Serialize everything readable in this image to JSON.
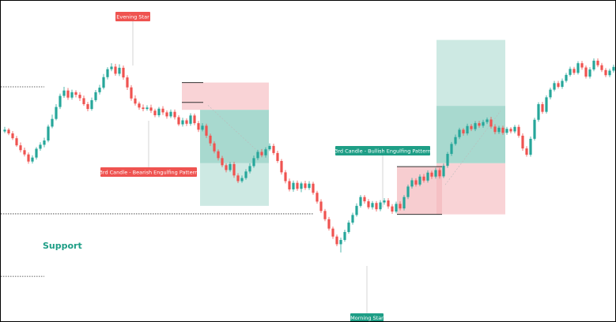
{
  "chart_data": {
    "type": "candlestick",
    "title": "",
    "xlabel": "",
    "ylabel": "",
    "grid": false,
    "legend": "none",
    "colors": {
      "up": "#26a69a",
      "down": "#ef5350",
      "tag_bear": "#ef5350",
      "tag_bull": "#1e9e86",
      "profit_zone": "#cde9e3",
      "profit_zone_dark": "#a8d9cf",
      "loss_zone": "#f9d3d6",
      "support_text": "#1e9e86"
    },
    "ylim": [
      0,
      100
    ],
    "candles": [
      [
        56.8,
        57.4,
        58.4,
        56.2
      ],
      [
        57.4,
        56.1,
        58.0,
        55.5
      ],
      [
        56.1,
        54.4,
        56.9,
        53.8
      ],
      [
        54.4,
        51.9,
        55.2,
        51.4
      ],
      [
        51.9,
        50.2,
        52.9,
        49.4
      ],
      [
        50.2,
        48.7,
        51.1,
        48.0
      ],
      [
        48.7,
        46.2,
        49.4,
        45.4
      ],
      [
        46.2,
        47.6,
        48.4,
        45.5
      ],
      [
        47.6,
        50.7,
        51.3,
        46.9
      ],
      [
        50.7,
        52.1,
        53.0,
        50.0
      ],
      [
        52.1,
        53.6,
        54.6,
        51.2
      ],
      [
        53.6,
        58.5,
        59.2,
        53.0
      ],
      [
        58.5,
        61.2,
        62.7,
        57.9
      ],
      [
        61.2,
        65.4,
        66.4,
        60.7
      ],
      [
        65.4,
        69.3,
        70.1,
        64.7
      ],
      [
        69.3,
        71.2,
        72.5,
        68.6
      ],
      [
        71.2,
        68.7,
        72.1,
        67.9
      ],
      [
        68.7,
        70.6,
        71.5,
        68.0
      ],
      [
        70.6,
        69.7,
        71.3,
        68.8
      ],
      [
        69.7,
        68.5,
        70.6,
        67.5
      ],
      [
        68.5,
        66.4,
        69.4,
        65.8
      ],
      [
        66.4,
        64.7,
        67.2,
        63.9
      ],
      [
        64.7,
        67.8,
        68.7,
        64.1
      ],
      [
        67.8,
        70.6,
        71.4,
        67.2
      ],
      [
        70.6,
        72.2,
        73.2,
        69.8
      ],
      [
        72.2,
        75.9,
        77.0,
        71.6
      ],
      [
        75.9,
        78.7,
        79.4,
        75.1
      ],
      [
        78.7,
        79.6,
        80.8,
        78.0
      ],
      [
        79.6,
        77.1,
        80.6,
        76.4
      ],
      [
        77.1,
        79.2,
        80.4,
        76.3
      ],
      [
        79.2,
        75.8,
        80.0,
        75.0
      ],
      [
        75.8,
        72.3,
        76.6,
        71.4
      ],
      [
        72.3,
        68.4,
        73.1,
        67.6
      ],
      [
        68.4,
        66.6,
        69.5,
        65.9
      ],
      [
        66.6,
        65.2,
        67.3,
        64.4
      ],
      [
        65.2,
        64.7,
        66.3,
        63.9
      ],
      [
        64.7,
        65.2,
        66.0,
        64.1
      ],
      [
        65.2,
        64.1,
        66.2,
        63.3
      ],
      [
        64.1,
        62.5,
        64.8,
        61.8
      ],
      [
        62.5,
        64.8,
        65.4,
        61.8
      ],
      [
        64.8,
        63.5,
        65.7,
        62.6
      ],
      [
        63.5,
        62.1,
        64.2,
        61.3
      ],
      [
        62.1,
        63.7,
        64.5,
        61.5
      ],
      [
        63.7,
        61.8,
        64.5,
        61.0
      ],
      [
        61.8,
        59.3,
        62.5,
        58.7
      ],
      [
        59.3,
        60.7,
        61.6,
        58.5
      ],
      [
        60.7,
        59.5,
        61.4,
        58.7
      ],
      [
        59.5,
        62.4,
        63.2,
        58.8
      ],
      [
        62.4,
        59.7,
        63.1,
        59.0
      ],
      [
        59.7,
        57.4,
        60.5,
        56.6
      ],
      [
        57.4,
        58.8,
        59.7,
        56.8
      ],
      [
        58.8,
        55.3,
        59.5,
        54.5
      ],
      [
        55.3,
        52.6,
        56.0,
        51.7
      ],
      [
        52.6,
        49.8,
        53.3,
        49.1
      ],
      [
        49.8,
        47.4,
        50.5,
        46.6
      ],
      [
        47.4,
        44.9,
        48.2,
        44.2
      ],
      [
        44.9,
        43.2,
        45.6,
        42.4
      ],
      [
        43.2,
        45.3,
        46.0,
        42.6
      ],
      [
        45.3,
        41.3,
        46.1,
        40.5
      ],
      [
        41.3,
        39.3,
        42.1,
        38.6
      ],
      [
        39.3,
        40.4,
        41.3,
        38.7
      ],
      [
        40.4,
        42.7,
        43.5,
        39.8
      ],
      [
        42.7,
        44.6,
        45.6,
        42.0
      ],
      [
        44.6,
        47.4,
        48.3,
        44.0
      ],
      [
        47.4,
        49.6,
        50.3,
        46.7
      ],
      [
        49.6,
        48.4,
        50.6,
        47.7
      ],
      [
        48.4,
        50.5,
        51.2,
        47.6
      ],
      [
        50.5,
        51.7,
        52.6,
        49.9
      ],
      [
        51.7,
        49.2,
        52.5,
        48.5
      ],
      [
        49.2,
        46.4,
        50.0,
        45.7
      ],
      [
        46.4,
        42.4,
        47.1,
        41.6
      ],
      [
        42.4,
        39.3,
        43.2,
        38.5
      ],
      [
        39.3,
        36.4,
        40.2,
        35.7
      ],
      [
        36.4,
        38.7,
        39.5,
        35.6
      ],
      [
        38.7,
        36.6,
        39.5,
        35.9
      ],
      [
        36.6,
        38.5,
        39.1,
        35.4
      ],
      [
        38.5,
        36.9,
        39.4,
        36.2
      ],
      [
        36.9,
        38.4,
        39.3,
        36.2
      ],
      [
        38.4,
        35.2,
        39.1,
        34.5
      ],
      [
        35.2,
        32.1,
        35.9,
        31.4
      ],
      [
        32.1,
        28.8,
        32.9,
        28.1
      ],
      [
        28.8,
        25.9,
        29.5,
        25.2
      ],
      [
        25.9,
        22.6,
        26.7,
        21.9
      ],
      [
        22.6,
        19.8,
        23.3,
        19.0
      ],
      [
        19.8,
        17.1,
        20.5,
        16.4
      ],
      [
        17.1,
        18.6,
        19.4,
        14.2
      ],
      [
        18.6,
        21.4,
        22.2,
        18.0
      ],
      [
        21.4,
        24.7,
        25.5,
        20.8
      ],
      [
        24.7,
        27.4,
        28.2,
        24.0
      ],
      [
        27.4,
        30.6,
        31.5,
        26.8
      ],
      [
        30.6,
        33.7,
        34.4,
        30.0
      ],
      [
        33.7,
        32.2,
        34.4,
        31.4
      ],
      [
        32.2,
        30.1,
        33.0,
        29.4
      ],
      [
        30.1,
        31.6,
        32.3,
        29.3
      ],
      [
        31.6,
        29.4,
        32.3,
        28.6
      ],
      [
        29.4,
        31.8,
        32.6,
        28.7
      ],
      [
        31.8,
        32.5,
        33.3,
        31.0
      ],
      [
        32.5,
        30.4,
        33.3,
        29.6
      ],
      [
        30.4,
        28.6,
        31.2,
        27.8
      ],
      [
        28.6,
        31.3,
        32.1,
        28.0
      ],
      [
        31.3,
        29.7,
        32.2,
        29.0
      ],
      [
        29.7,
        33.7,
        34.4,
        29.0
      ],
      [
        33.7,
        37.4,
        38.1,
        33.0
      ],
      [
        37.4,
        39.6,
        40.4,
        36.7
      ],
      [
        39.6,
        38.1,
        40.3,
        37.4
      ],
      [
        38.1,
        40.9,
        41.7,
        37.5
      ],
      [
        40.9,
        39.5,
        41.8,
        38.8
      ],
      [
        39.5,
        42.3,
        43.1,
        38.8
      ],
      [
        42.3,
        40.9,
        43.0,
        40.1
      ],
      [
        40.9,
        43.2,
        44.0,
        40.2
      ],
      [
        43.2,
        41.0,
        44.0,
        40.2
      ],
      [
        41.0,
        44.7,
        45.5,
        40.4
      ],
      [
        44.7,
        48.9,
        49.6,
        44.0
      ],
      [
        48.9,
        52.4,
        53.1,
        48.2
      ],
      [
        52.4,
        54.8,
        55.7,
        51.8
      ],
      [
        54.8,
        57.4,
        58.1,
        54.1
      ],
      [
        57.4,
        56.1,
        58.0,
        55.3
      ],
      [
        56.1,
        58.7,
        59.5,
        55.4
      ],
      [
        58.7,
        57.6,
        59.4,
        56.9
      ],
      [
        57.6,
        59.7,
        60.4,
        56.9
      ],
      [
        59.7,
        58.8,
        60.5,
        58.1
      ],
      [
        58.8,
        60.1,
        60.9,
        58.1
      ],
      [
        60.1,
        61.0,
        61.7,
        59.4
      ],
      [
        61.0,
        58.5,
        61.9,
        57.8
      ],
      [
        58.5,
        56.6,
        59.3,
        55.8
      ],
      [
        56.6,
        58.1,
        58.8,
        55.9
      ],
      [
        58.1,
        56.3,
        58.8,
        55.6
      ],
      [
        56.3,
        57.7,
        58.4,
        55.6
      ],
      [
        57.7,
        56.8,
        58.3,
        56.1
      ],
      [
        56.8,
        58.4,
        59.1,
        56.1
      ],
      [
        58.4,
        55.3,
        59.2,
        54.6
      ],
      [
        55.3,
        50.8,
        56.1,
        50.0
      ],
      [
        50.8,
        48.6,
        51.6,
        47.9
      ],
      [
        48.6,
        54.2,
        55.0,
        47.9
      ],
      [
        54.2,
        60.9,
        61.6,
        53.6
      ],
      [
        60.9,
        66.4,
        67.1,
        60.2
      ],
      [
        66.4,
        63.7,
        67.2,
        63.0
      ],
      [
        63.7,
        68.8,
        69.5,
        63.1
      ],
      [
        68.8,
        71.5,
        72.2,
        68.1
      ],
      [
        71.5,
        73.8,
        74.6,
        70.9
      ],
      [
        73.8,
        72.5,
        74.6,
        71.9
      ],
      [
        72.5,
        74.6,
        75.4,
        71.8
      ],
      [
        74.6,
        76.7,
        77.4,
        74.0
      ],
      [
        76.7,
        78.8,
        79.6,
        76.1
      ],
      [
        78.8,
        77.4,
        79.5,
        76.7
      ],
      [
        77.4,
        80.8,
        81.5,
        76.8
      ],
      [
        80.8,
        79.3,
        81.6,
        78.5
      ],
      [
        79.3,
        76.1,
        80.0,
        75.4
      ],
      [
        76.1,
        78.6,
        79.4,
        75.4
      ],
      [
        78.6,
        81.7,
        82.5,
        78.0
      ],
      [
        81.7,
        80.1,
        82.5,
        79.4
      ],
      [
        80.1,
        78.4,
        80.9,
        77.7
      ],
      [
        78.4,
        76.6,
        79.1,
        75.9
      ],
      [
        76.6,
        78.2,
        78.9,
        75.9
      ],
      [
        78.2,
        79.5,
        80.3,
        77.5
      ]
    ],
    "annotations": {
      "evening_star": "Evening Star",
      "bearish_engulfing": "3rd Candle - Bearish Engulfing Pattern",
      "bullish_engulfing": "3rd Candle - Bullish Engulfing Pattern",
      "morning_star": "Morning Star",
      "support": "Support"
    }
  }
}
